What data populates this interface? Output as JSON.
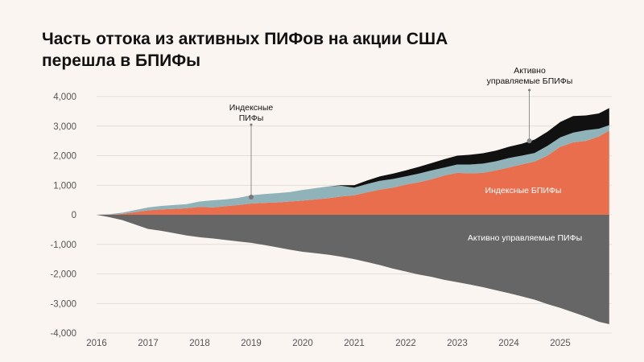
{
  "chart_data": {
    "type": "area",
    "title": "Часть оттока из активных ПИФов на акции США перешла в БПИФы",
    "title_lines": [
      "Часть оттока из активных ПИФов на акции США",
      "перешла в БПИФы"
    ],
    "xlabel": "",
    "ylabel": "",
    "xlim": [
      2016,
      2026
    ],
    "ylim": [
      -4000,
      4000
    ],
    "x_ticks": [
      "2016",
      "2017",
      "2018",
      "2019",
      "2020",
      "2021",
      "2022",
      "2023",
      "2024",
      "2025"
    ],
    "y_ticks": [
      "4,000",
      "3,000",
      "2,000",
      "1,000",
      "0",
      "-1,000",
      "-2,000",
      "-3,000",
      "-4,000"
    ],
    "grid": true,
    "x": [
      2016.0,
      2016.25,
      2016.5,
      2016.75,
      2017.0,
      2017.25,
      2017.5,
      2017.75,
      2018.0,
      2018.25,
      2018.5,
      2018.75,
      2019.0,
      2019.25,
      2019.5,
      2019.75,
      2020.0,
      2020.25,
      2020.5,
      2020.75,
      2021.0,
      2021.25,
      2021.5,
      2021.75,
      2022.0,
      2022.25,
      2022.5,
      2022.75,
      2023.0,
      2023.25,
      2023.5,
      2023.75,
      2024.0,
      2024.25,
      2024.5,
      2024.75,
      2025.0,
      2025.25,
      2025.5,
      2025.75,
      2025.95
    ],
    "series": [
      {
        "name": "Индексные БПИФы",
        "color": "#E96E4E",
        "values": [
          0,
          5,
          30,
          90,
          150,
          180,
          200,
          220,
          270,
          250,
          290,
          330,
          380,
          400,
          420,
          450,
          480,
          520,
          560,
          620,
          660,
          760,
          850,
          920,
          1020,
          1100,
          1200,
          1330,
          1420,
          1400,
          1420,
          1500,
          1600,
          1700,
          1800,
          2000,
          2300,
          2450,
          2500,
          2650,
          2850
        ]
      },
      {
        "name": "Индексные ПИФы",
        "color": "#8FB3B9",
        "values": [
          0,
          15,
          40,
          70,
          100,
          120,
          130,
          140,
          180,
          240,
          230,
          240,
          280,
          300,
          310,
          320,
          360,
          380,
          400,
          360,
          260,
          280,
          300,
          290,
          280,
          290,
          300,
          270,
          280,
          300,
          310,
          310,
          320,
          300,
          290,
          330,
          320,
          330,
          360,
          260,
          180
        ]
      },
      {
        "name": "Активно управляемые БПИФы",
        "color": "#111111",
        "values": [
          0,
          0,
          0,
          0,
          0,
          0,
          0,
          0,
          0,
          0,
          0,
          0,
          0,
          0,
          0,
          0,
          0,
          0,
          0,
          20,
          80,
          120,
          150,
          180,
          200,
          230,
          250,
          280,
          300,
          330,
          350,
          360,
          380,
          400,
          450,
          480,
          520,
          560,
          500,
          520,
          580
        ]
      },
      {
        "name": "Активно управляемые ПИФы",
        "color": "#666666",
        "values": [
          0,
          -80,
          -180,
          -330,
          -480,
          -540,
          -620,
          -700,
          -760,
          -800,
          -850,
          -900,
          -950,
          -1020,
          -1100,
          -1180,
          -1250,
          -1300,
          -1350,
          -1420,
          -1500,
          -1600,
          -1700,
          -1820,
          -1920,
          -2020,
          -2100,
          -2200,
          -2280,
          -2360,
          -2450,
          -2550,
          -2650,
          -2760,
          -2870,
          -3020,
          -3150,
          -3300,
          -3450,
          -3620,
          -3700
        ]
      }
    ],
    "labels": {
      "index_etf": "Индексные БПИФы",
      "active_mutual": "Активно управляемые ПИФы",
      "index_mutual_line1": "Индексные",
      "index_mutual_line2": "ПИФы",
      "active_etf_line1": "Активно",
      "active_etf_line2": "управляемые БПИФы"
    },
    "annotation_points": {
      "index_mutual": {
        "x": 2019.0,
        "y": 600
      },
      "active_etf": {
        "x": 2024.4,
        "y": 2500
      }
    }
  }
}
